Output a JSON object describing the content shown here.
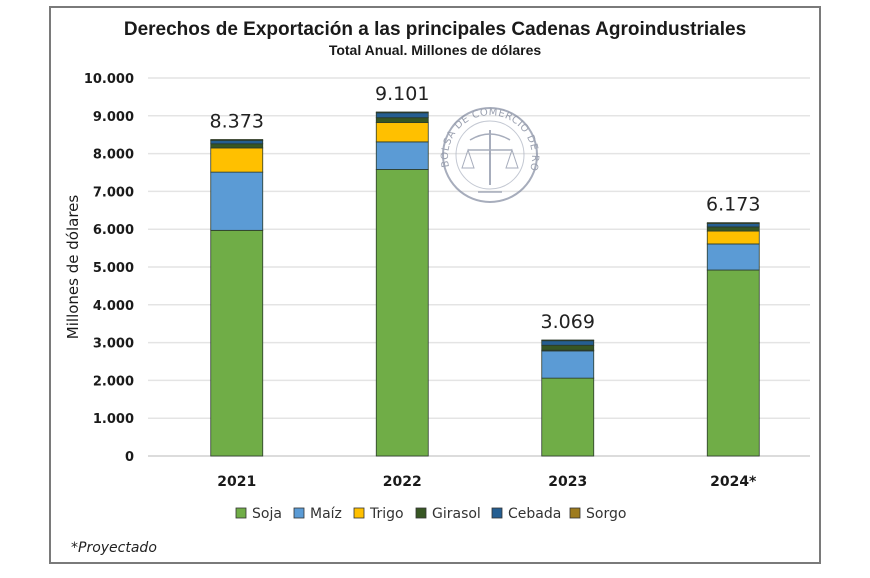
{
  "chart_data": {
    "type": "bar",
    "stacked": true,
    "title": "Derechos de Exportación a las principales Cadenas Agroindustriales",
    "subtitle": "Total Anual. Millones de dólares",
    "xlabel": "",
    "ylabel": "Millones de dólares",
    "ylim": [
      0,
      10000
    ],
    "yticks": [
      0,
      1000,
      2000,
      3000,
      4000,
      5000,
      6000,
      7000,
      8000,
      9000,
      10000
    ],
    "ytick_labels": [
      "0",
      "1.000",
      "2.000",
      "3.000",
      "4.000",
      "5.000",
      "6.000",
      "7.000",
      "8.000",
      "9.000",
      "10.000"
    ],
    "grid": true,
    "legend_position": "bottom",
    "categories": [
      "2021",
      "2022",
      "2023",
      "2024*"
    ],
    "totals": [
      8373,
      9101,
      3069,
      6173
    ],
    "total_labels": [
      "8.373",
      "9.101",
      "3.069",
      "6.173"
    ],
    "series": [
      {
        "name": "Soja",
        "color": "#70ad47",
        "values": [
          5970,
          7580,
          2060,
          4920
        ]
      },
      {
        "name": "Maíz",
        "color": "#5b9bd5",
        "values": [
          1540,
          730,
          720,
          690
        ]
      },
      {
        "name": "Trigo",
        "color": "#ffc000",
        "values": [
          640,
          510,
          20,
          340
        ]
      },
      {
        "name": "Girasol",
        "color": "#375623",
        "values": [
          110,
          130,
          130,
          110
        ]
      },
      {
        "name": "Cebada",
        "color": "#255e91",
        "values": [
          90,
          130,
          120,
          90
        ]
      },
      {
        "name": "Sorgo",
        "color": "#9e7b1e",
        "values": [
          23,
          21,
          19,
          23
        ]
      }
    ],
    "footnote": "*Proyectado",
    "watermark": "BOLSA DE COMERCIO DE ROSARIO"
  }
}
